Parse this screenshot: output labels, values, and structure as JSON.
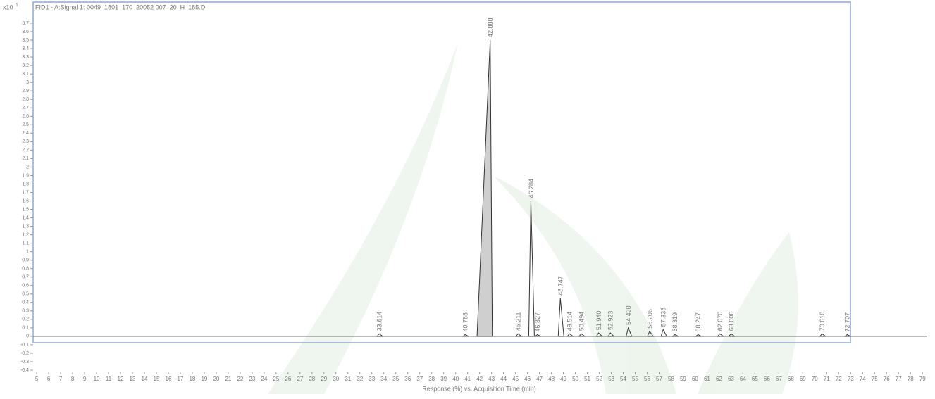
{
  "chart_data": {
    "type": "chromatogram",
    "title": "FID1 - A:Signal 1: 0049_1801_170_20052 007_20_H_185.D",
    "y_multiplier": "x10",
    "y_exponent": "1",
    "xlabel": "Response (%) vs. Acquisition Time (min)",
    "color": "#333333",
    "main_fill": "#cfcfcf",
    "xlim": [
      4.7,
      79.4
    ],
    "ylim": [
      -0.4,
      3.7
    ],
    "xticks": [
      5,
      6,
      7,
      8,
      9,
      10,
      11,
      12,
      13,
      14,
      15,
      16,
      17,
      18,
      19,
      20,
      21,
      22,
      23,
      24,
      25,
      26,
      27,
      28,
      29,
      30,
      31,
      32,
      33,
      34,
      35,
      36,
      37,
      38,
      39,
      40,
      41,
      42,
      43,
      44,
      45,
      46,
      47,
      48,
      49,
      50,
      51,
      52,
      53,
      54,
      55,
      56,
      57,
      58,
      59,
      60,
      61,
      62,
      63,
      64,
      65,
      66,
      67,
      68,
      69,
      70,
      71,
      72,
      73,
      74,
      75,
      76,
      77,
      78,
      79
    ],
    "yticks": [
      -0.4,
      -0.3,
      -0.2,
      -0.1,
      0,
      0.1,
      0.2,
      0.3,
      0.4,
      0.5,
      0.6,
      0.7,
      0.8,
      0.9,
      1,
      1.1,
      1.2,
      1.3,
      1.4,
      1.5,
      1.6,
      1.7,
      1.8,
      1.9,
      2,
      2.1,
      2.2,
      2.3,
      2.4,
      2.5,
      2.6,
      2.7,
      2.8,
      2.9,
      3,
      3.1,
      3.2,
      3.3,
      3.4,
      3.5,
      3.6,
      3.7
    ],
    "peaks": {
      "x": [
        33.614,
        40.788,
        42.888,
        45.211,
        46.284,
        46.827,
        48.747,
        49.514,
        50.494,
        51.94,
        52.923,
        54.42,
        56.206,
        57.338,
        58.319,
        60.247,
        62.07,
        63.006,
        70.61,
        72.707
      ],
      "x_labels": [
        "33.614",
        "40.788",
        "42.888",
        "45.211",
        "46.284",
        "46.827",
        "48.747",
        "49.514",
        "50.494",
        "51.940",
        "52.923",
        "54.420",
        "56.206",
        "57.338",
        "58.319",
        "60.247",
        "62.070",
        "63.006",
        "70.610",
        "72.707"
      ],
      "values": [
        0.03,
        0.02,
        3.5,
        0.03,
        1.6,
        0.02,
        0.45,
        0.03,
        0.03,
        0.04,
        0.04,
        0.1,
        0.06,
        0.08,
        0.02,
        0.02,
        0.03,
        0.03,
        0.03,
        0.02
      ]
    }
  }
}
